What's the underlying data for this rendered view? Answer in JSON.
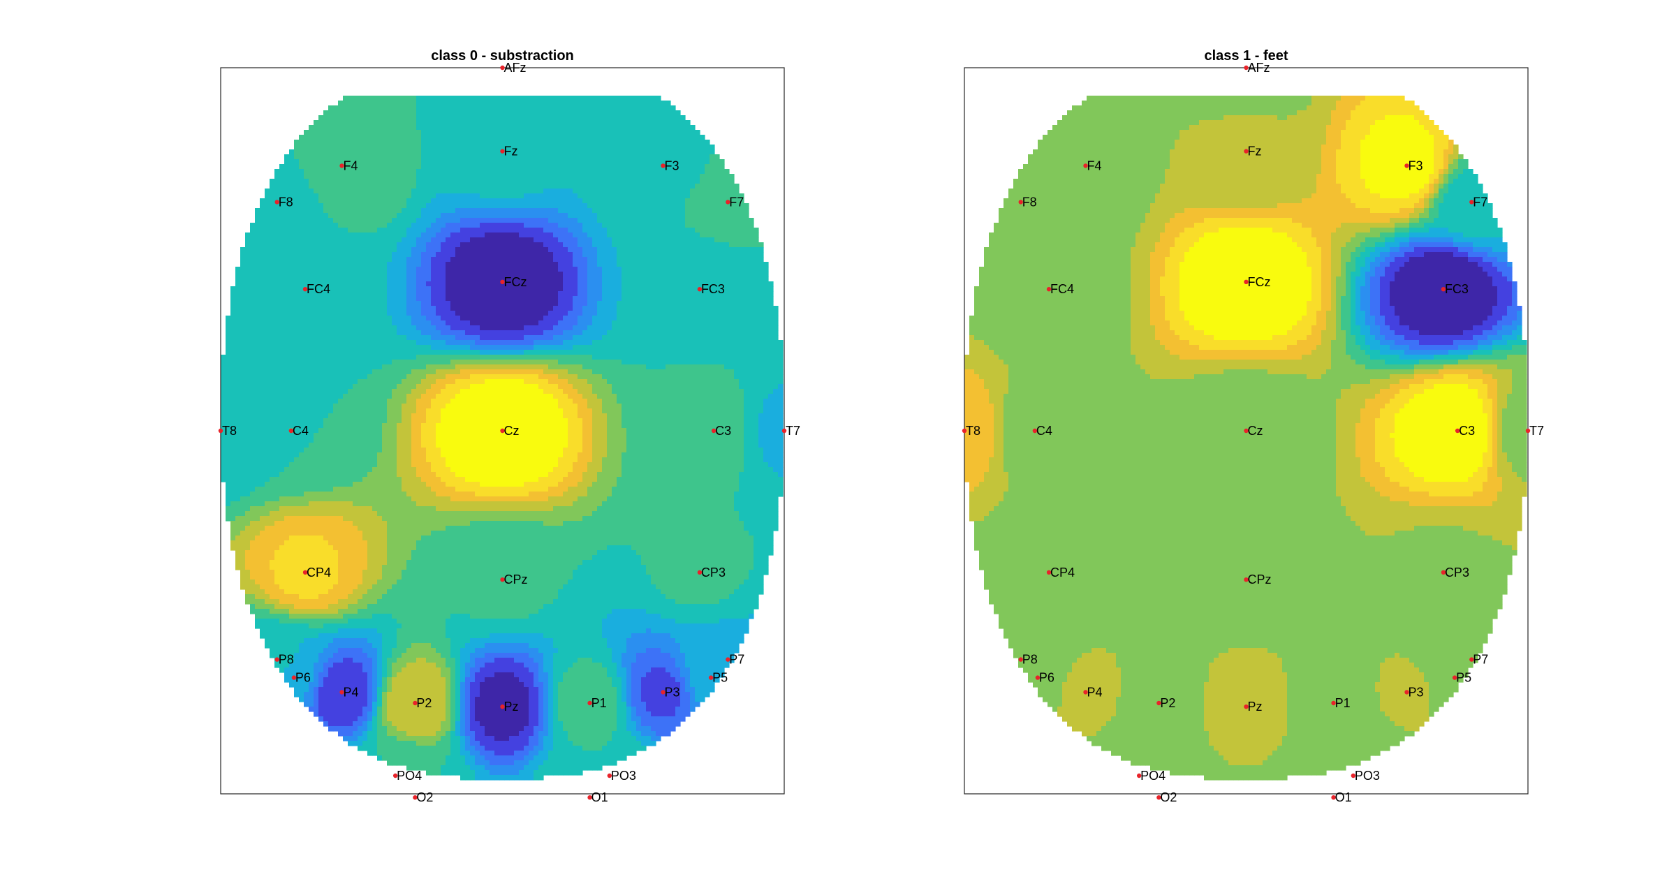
{
  "chart_data": [
    {
      "type": "heatmap",
      "subtype": "topographic-contour",
      "title": "class 0 - substraction",
      "xlabel": "",
      "ylabel": "",
      "colormap": "parula",
      "grid": false,
      "legend": "none",
      "electrodes": [
        {
          "label": "AFz",
          "x": 0.0,
          "y": 1.0
        },
        {
          "label": "Fz",
          "x": 0.0,
          "y": 0.77
        },
        {
          "label": "F4",
          "x": -0.57,
          "y": 0.73
        },
        {
          "label": "F3",
          "x": 0.57,
          "y": 0.73
        },
        {
          "label": "F8",
          "x": -0.8,
          "y": 0.63
        },
        {
          "label": "F7",
          "x": 0.8,
          "y": 0.63
        },
        {
          "label": "FC4",
          "x": -0.7,
          "y": 0.39
        },
        {
          "label": "FCz",
          "x": 0.0,
          "y": 0.41
        },
        {
          "label": "FC3",
          "x": 0.7,
          "y": 0.39
        },
        {
          "label": "T8",
          "x": -1.0,
          "y": 0.0
        },
        {
          "label": "C4",
          "x": -0.75,
          "y": 0.0
        },
        {
          "label": "Cz",
          "x": 0.0,
          "y": 0.0
        },
        {
          "label": "C3",
          "x": 0.75,
          "y": 0.0
        },
        {
          "label": "T7",
          "x": 1.0,
          "y": 0.0
        },
        {
          "label": "CP4",
          "x": -0.7,
          "y": -0.39
        },
        {
          "label": "CPz",
          "x": 0.0,
          "y": -0.41
        },
        {
          "label": "CP3",
          "x": 0.7,
          "y": -0.39
        },
        {
          "label": "P8",
          "x": -0.8,
          "y": -0.63
        },
        {
          "label": "P7",
          "x": 0.8,
          "y": -0.63
        },
        {
          "label": "P6",
          "x": -0.74,
          "y": -0.68
        },
        {
          "label": "P5",
          "x": 0.74,
          "y": -0.68
        },
        {
          "label": "P4",
          "x": -0.57,
          "y": -0.72
        },
        {
          "label": "P2",
          "x": -0.31,
          "y": -0.75
        },
        {
          "label": "Pz",
          "x": 0.0,
          "y": -0.76
        },
        {
          "label": "P1",
          "x": 0.31,
          "y": -0.75
        },
        {
          "label": "P3",
          "x": 0.57,
          "y": -0.72
        },
        {
          "label": "PO4",
          "x": -0.38,
          "y": -0.95
        },
        {
          "label": "PO3",
          "x": 0.38,
          "y": -0.95
        },
        {
          "label": "O2",
          "x": -0.31,
          "y": -1.01
        },
        {
          "label": "O1",
          "x": 0.31,
          "y": -1.01
        }
      ],
      "values": {
        "AFz": 0.5,
        "Fz": 0.45,
        "F4": 0.58,
        "F3": 0.48,
        "F8": 0.42,
        "F7": 0.52,
        "FC4": 0.45,
        "FCz": 0.02,
        "FC3": 0.45,
        "T8": 0.42,
        "C4": 0.5,
        "Cz": 1.0,
        "C3": 0.55,
        "T7": 0.4,
        "CP4": 0.85,
        "CPz": 0.52,
        "CP3": 0.52,
        "P8": 0.45,
        "P7": 0.4,
        "P6": 0.35,
        "P5": 0.38,
        "P4": 0.1,
        "P2": 0.75,
        "Pz": 0.05,
        "P1": 0.55,
        "P3": 0.15,
        "PO4": 0.5,
        "PO3": 0.5,
        "O2": 0.5,
        "O1": 0.5
      }
    },
    {
      "type": "heatmap",
      "subtype": "topographic-contour",
      "title": "class 1 - feet",
      "xlabel": "",
      "ylabel": "",
      "colormap": "parula",
      "grid": false,
      "legend": "none",
      "electrodes": "same as class 0",
      "values": {
        "AFz": 0.62,
        "Fz": 0.68,
        "F4": 0.63,
        "F3": 0.95,
        "F8": 0.6,
        "F7": 0.45,
        "FC4": 0.6,
        "FCz": 1.0,
        "FC3": 0.0,
        "T8": 0.8,
        "C4": 0.6,
        "Cz": 0.6,
        "C3": 1.0,
        "T7": 0.62,
        "CP4": 0.6,
        "CPz": 0.6,
        "CP3": 0.65,
        "P8": 0.6,
        "P7": 0.65,
        "P6": 0.6,
        "P5": 0.62,
        "P4": 0.7,
        "P2": 0.6,
        "Pz": 0.72,
        "P1": 0.6,
        "P3": 0.68,
        "PO4": 0.6,
        "PO3": 0.6,
        "O2": 0.6,
        "O1": 0.6
      }
    }
  ]
}
